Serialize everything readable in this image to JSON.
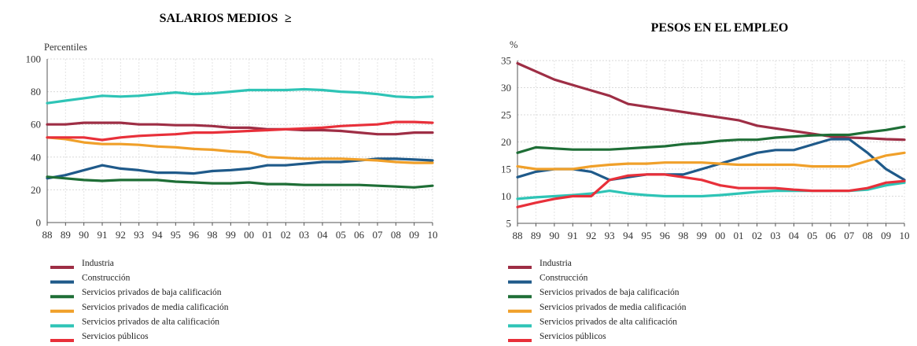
{
  "colors": {
    "Industria": "#9e2e45",
    "Construccion": "#1f5a8a",
    "Baja": "#1e6e36",
    "Media": "#f0a02a",
    "Alta": "#2ec4b6",
    "Publicos": "#e8303a"
  },
  "legend_labels": [
    "Industria",
    "Construcción",
    "Servicios privados de baja calificación",
    "Servicios privados de media calificación",
    "Servicios privados de alta calificación",
    "Servicios públicos"
  ],
  "chart_data": [
    {
      "type": "line",
      "title": "SALARIOS MEDIOS",
      "title_mark": "≥",
      "ylabel": "Percentiles",
      "xlabel": "",
      "ylim": [
        0,
        100
      ],
      "yticks": [
        0,
        20,
        40,
        60,
        80,
        100
      ],
      "x": [
        "88",
        "89",
        "90",
        "91",
        "92",
        "93",
        "94",
        "95",
        "96",
        "98",
        "99",
        "00",
        "01",
        "02",
        "03",
        "04",
        "05",
        "06",
        "07",
        "08",
        "09",
        "10"
      ],
      "grid": true,
      "series": [
        {
          "name": "Industria",
          "values": [
            60,
            60,
            61,
            61,
            61,
            60,
            60,
            59.5,
            59.5,
            59,
            58,
            58,
            57,
            57,
            56.5,
            56.5,
            56,
            55,
            54,
            54,
            55,
            55
          ]
        },
        {
          "name": "Construcción",
          "values": [
            27,
            29,
            32,
            35,
            33,
            32,
            30.5,
            30.5,
            30,
            31.5,
            32,
            33,
            35,
            35,
            36,
            37,
            37,
            38,
            39,
            39,
            38.5,
            38
          ]
        },
        {
          "name": "Servicios privados de baja calificación",
          "values": [
            28,
            27,
            26,
            25.5,
            26,
            26,
            26,
            25,
            24.5,
            24,
            24,
            24.5,
            23.5,
            23.5,
            23,
            23,
            23,
            23,
            22.5,
            22,
            21.5,
            22.5
          ]
        },
        {
          "name": "Servicios privados de media calificación",
          "values": [
            52,
            51,
            49,
            48,
            48,
            47.5,
            46.5,
            46,
            45,
            44.5,
            43.5,
            43,
            40,
            39.5,
            39,
            39,
            39,
            38.5,
            38,
            37,
            36.5,
            36.5
          ]
        },
        {
          "name": "Servicios privados de alta calificación",
          "values": [
            73,
            74.5,
            76,
            77.5,
            77,
            77.5,
            78.5,
            79.5,
            78.5,
            79,
            80,
            81,
            81,
            81,
            81.5,
            81,
            80,
            79.5,
            78.5,
            77,
            76.5,
            77
          ]
        },
        {
          "name": "Servicios públicos",
          "values": [
            52,
            52,
            52,
            50.5,
            52,
            53,
            53.5,
            54,
            55,
            55,
            55.5,
            56,
            56.5,
            57,
            57.5,
            58,
            59,
            59.5,
            60,
            61.5,
            61.5,
            61
          ]
        }
      ]
    },
    {
      "type": "line",
      "title": "PESOS EN EL EMPLEO",
      "ylabel": "%",
      "xlabel": "",
      "ylim": [
        5,
        35
      ],
      "yticks": [
        5,
        10,
        15,
        20,
        25,
        30,
        35
      ],
      "x": [
        "88",
        "89",
        "90",
        "91",
        "92",
        "93",
        "94",
        "95",
        "96",
        "98",
        "99",
        "00",
        "01",
        "02",
        "03",
        "04",
        "05",
        "06",
        "07",
        "08",
        "09",
        "10"
      ],
      "grid": true,
      "series": [
        {
          "name": "Industria",
          "values": [
            34.5,
            33,
            31.5,
            30.5,
            29.5,
            28.5,
            27,
            26.5,
            26,
            25.5,
            25,
            24.5,
            24,
            23,
            22.5,
            22,
            21.5,
            21,
            20.8,
            20.7,
            20.5,
            20.4
          ]
        },
        {
          "name": "Construcción",
          "values": [
            13.5,
            14.5,
            15,
            15,
            14.5,
            13,
            13.5,
            14,
            14,
            14,
            15,
            16,
            17,
            18,
            18.5,
            18.5,
            19.5,
            20.5,
            20.5,
            18,
            15,
            13
          ]
        },
        {
          "name": "Servicios privados de baja calificación",
          "values": [
            18,
            19,
            18.8,
            18.6,
            18.6,
            18.6,
            18.8,
            19,
            19.2,
            19.6,
            19.8,
            20.2,
            20.4,
            20.4,
            20.8,
            21,
            21.2,
            21.3,
            21.3,
            21.8,
            22.2,
            22.8
          ]
        },
        {
          "name": "Servicios privados de media calificación",
          "values": [
            15.5,
            15,
            15,
            15,
            15.5,
            15.8,
            16,
            16,
            16.2,
            16.2,
            16.2,
            16,
            15.8,
            15.8,
            15.8,
            15.8,
            15.5,
            15.5,
            15.5,
            16.5,
            17.5,
            18
          ]
        },
        {
          "name": "Servicios privados de alta calificación",
          "values": [
            9.5,
            9.8,
            10,
            10.2,
            10.5,
            11,
            10.5,
            10.2,
            10,
            10,
            10,
            10.2,
            10.5,
            10.8,
            11,
            11,
            11,
            11,
            11,
            11.2,
            12,
            12.5
          ]
        },
        {
          "name": "Servicios públicos",
          "values": [
            8,
            8.8,
            9.5,
            10,
            10,
            13,
            13.8,
            14,
            14,
            13.5,
            13,
            12,
            11.5,
            11.5,
            11.5,
            11.2,
            11,
            11,
            11,
            11.5,
            12.5,
            12.8
          ]
        }
      ]
    }
  ]
}
